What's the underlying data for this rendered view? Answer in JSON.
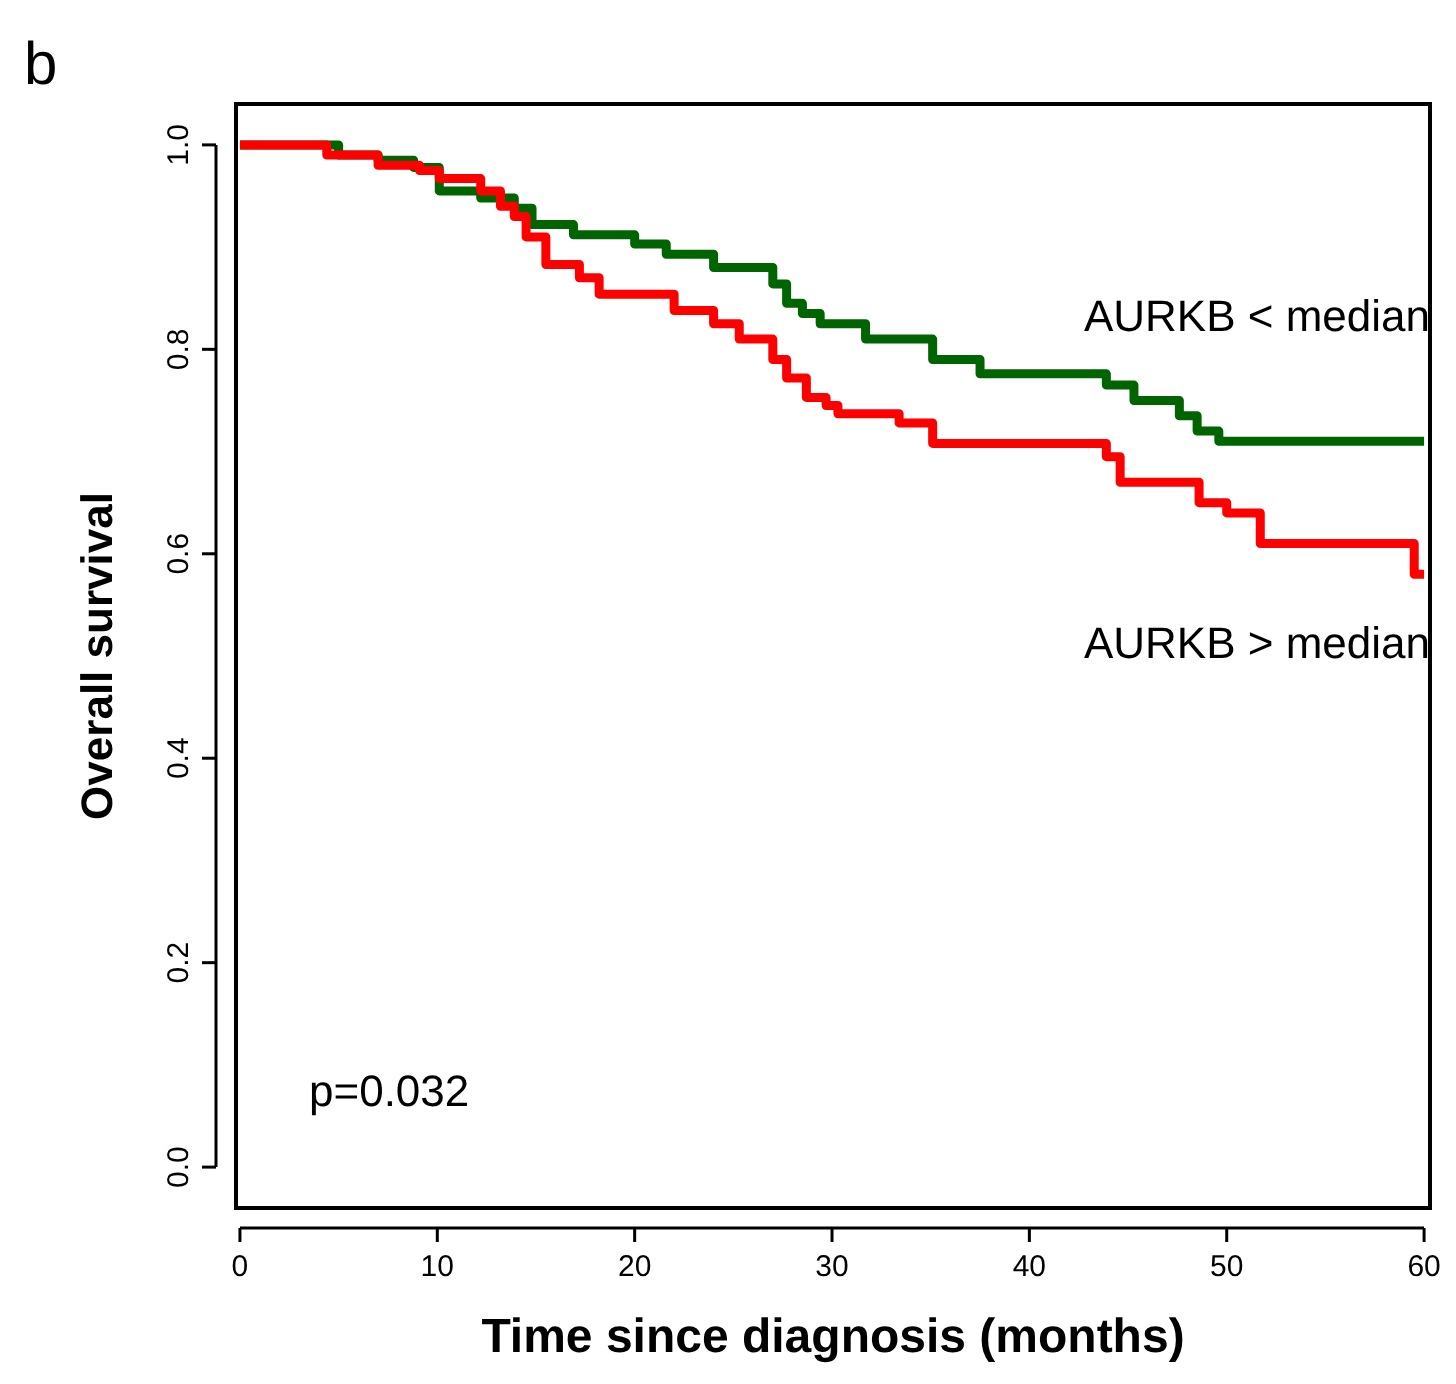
{
  "chart_data": {
    "type": "step",
    "xlabel": "Time since diagnosis (months)",
    "ylabel": "Overall survival",
    "xlim": [
      -0.2,
      60.3
    ],
    "ylim": [
      -0.04,
      1.04
    ],
    "xticks": [
      0,
      10,
      20,
      30,
      40,
      50,
      60
    ],
    "yticks": [
      {
        "value": 0,
        "label": "0.0"
      },
      0.2,
      0.4,
      0.6,
      0.8,
      {
        "value": 1,
        "label": "1.0"
      }
    ],
    "grid": false,
    "marker": "none",
    "line_style": "solid",
    "series": [
      {
        "name": "AURKB < median",
        "color": "#006400",
        "x": [
          0,
          5,
          7,
          8.8,
          10.1,
          12.2,
          13.9,
          14.8,
          16.9,
          20,
          21.6,
          24,
          27,
          27.7,
          28.5,
          29.4,
          31.7,
          35.1,
          37.5,
          43.9,
          45.3,
          47.6,
          48.5,
          49.6,
          60
        ],
        "values": [
          1,
          0.99,
          0.985,
          0.978,
          0.955,
          0.948,
          0.938,
          0.922,
          0.912,
          0.903,
          0.893,
          0.88,
          0.864,
          0.845,
          0.835,
          0.825,
          0.81,
          0.79,
          0.776,
          0.765,
          0.75,
          0.735,
          0.72,
          0.71,
          0.71
        ]
      },
      {
        "name": "AURKB > median",
        "color": "#ff0000",
        "x": [
          0,
          4.4,
          7,
          9.1,
          10.1,
          12.2,
          13.2,
          13.9,
          14.5,
          15.5,
          17.2,
          18.2,
          22,
          24,
          25.3,
          27,
          27.7,
          28.7,
          29.7,
          30.3,
          33.4,
          35.1,
          43.9,
          44.6,
          48.6,
          50,
          51.7,
          59.5,
          60
        ],
        "values": [
          1,
          0.99,
          0.98,
          0.975,
          0.967,
          0.955,
          0.94,
          0.93,
          0.91,
          0.883,
          0.87,
          0.854,
          0.838,
          0.825,
          0.81,
          0.79,
          0.772,
          0.753,
          0.745,
          0.737,
          0.728,
          0.708,
          0.695,
          0.67,
          0.65,
          0.64,
          0.61,
          0.58,
          0.58
        ]
      }
    ],
    "annotations": [
      "b",
      "p=0.032"
    ]
  }
}
